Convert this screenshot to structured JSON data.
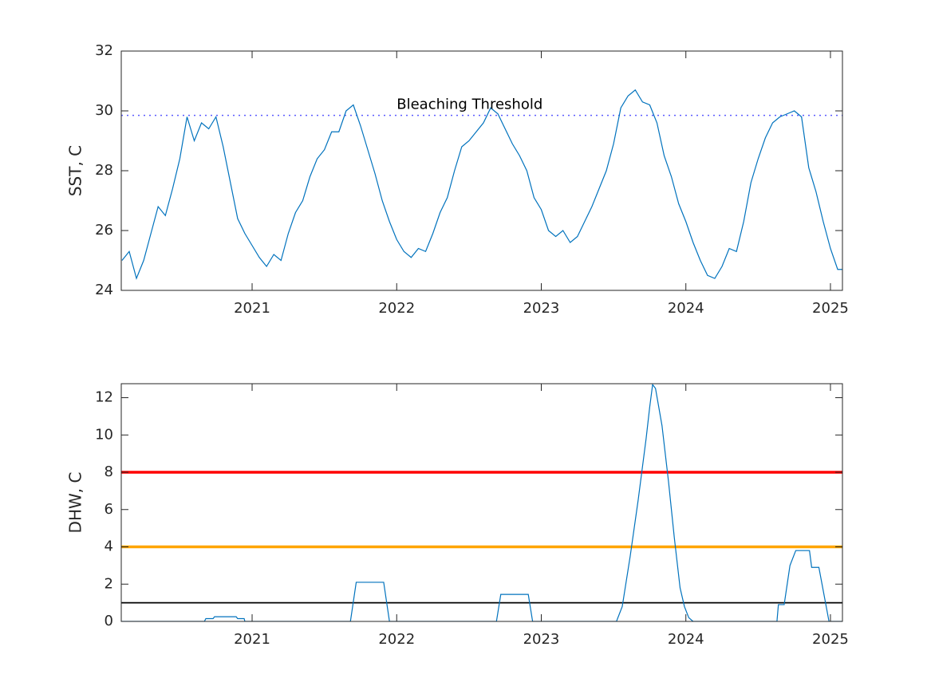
{
  "chart_data": [
    {
      "type": "line",
      "ylabel": "SST, C",
      "xlim": [
        2020.095,
        2025.083
      ],
      "xticks": [
        2021,
        2022,
        2023,
        2024,
        2025
      ],
      "ylim": [
        24,
        32
      ],
      "yticks": [
        24,
        26,
        28,
        30,
        32
      ],
      "x": [
        2020.1,
        2020.15,
        2020.2,
        2020.25,
        2020.3,
        2020.35,
        2020.4,
        2020.45,
        2020.5,
        2020.55,
        2020.6,
        2020.65,
        2020.7,
        2020.75,
        2020.8,
        2020.85,
        2020.9,
        2020.95,
        2021.0,
        2021.05,
        2021.1,
        2021.15,
        2021.2,
        2021.25,
        2021.3,
        2021.35,
        2021.4,
        2021.45,
        2021.5,
        2021.55,
        2021.6,
        2021.65,
        2021.7,
        2021.75,
        2021.8,
        2021.85,
        2021.9,
        2021.95,
        2022.0,
        2022.05,
        2022.1,
        2022.15,
        2022.2,
        2022.25,
        2022.3,
        2022.35,
        2022.4,
        2022.45,
        2022.5,
        2022.55,
        2022.6,
        2022.65,
        2022.7,
        2022.75,
        2022.8,
        2022.85,
        2022.9,
        2022.95,
        2023.0,
        2023.05,
        2023.1,
        2023.15,
        2023.2,
        2023.25,
        2023.3,
        2023.35,
        2023.4,
        2023.45,
        2023.5,
        2023.55,
        2023.6,
        2023.65,
        2023.7,
        2023.75,
        2023.8,
        2023.85,
        2023.9,
        2023.95,
        2024.0,
        2024.05,
        2024.1,
        2024.15,
        2024.2,
        2024.25,
        2024.3,
        2024.35,
        2024.4,
        2024.45,
        2024.5,
        2024.55,
        2024.6,
        2024.65,
        2024.7,
        2024.75,
        2024.8,
        2024.85,
        2024.9,
        2024.95,
        2025.0,
        2025.05,
        2025.08
      ],
      "series": [
        {
          "color": "#0072bd",
          "values": [
            25.0,
            25.3,
            24.4,
            25.0,
            25.9,
            26.8,
            26.5,
            27.4,
            28.4,
            29.8,
            29.0,
            29.6,
            29.4,
            29.8,
            28.8,
            27.6,
            26.4,
            25.9,
            25.5,
            25.1,
            24.8,
            25.2,
            25.0,
            25.9,
            26.6,
            27.0,
            27.8,
            28.4,
            28.7,
            29.3,
            29.3,
            30.0,
            30.2,
            29.5,
            28.7,
            27.9,
            27.0,
            26.3,
            25.7,
            25.3,
            25.1,
            25.4,
            25.3,
            25.9,
            26.6,
            27.1,
            28.0,
            28.8,
            29.0,
            29.3,
            29.6,
            30.1,
            29.9,
            29.4,
            28.9,
            28.5,
            28.0,
            27.1,
            26.7,
            26.0,
            25.8,
            26.0,
            25.6,
            25.8,
            26.3,
            26.8,
            27.4,
            28.0,
            28.9,
            30.1,
            30.5,
            30.7,
            30.3,
            30.2,
            29.6,
            28.5,
            27.8,
            26.9,
            26.3,
            25.6,
            25.0,
            24.5,
            24.4,
            24.8,
            25.4,
            25.3,
            26.3,
            27.6,
            28.4,
            29.1,
            29.6,
            29.8,
            29.9,
            30.0,
            29.8,
            28.1,
            27.3,
            26.3,
            25.4,
            24.7,
            24.7
          ]
        }
      ],
      "hlines": [
        {
          "value": 29.85,
          "color": "#5b5bff",
          "style": "dotted",
          "linewidth": 1.5
        }
      ],
      "annotations": [
        {
          "text": "Bleaching Threshold",
          "x": 2022.0,
          "y": 30.2
        }
      ]
    },
    {
      "type": "line",
      "ylabel": "DHW, C",
      "xlim": [
        2020.095,
        2025.083
      ],
      "xticks": [
        2021,
        2022,
        2023,
        2024,
        2025
      ],
      "ylim": [
        0,
        12.75
      ],
      "yticks": [
        0,
        2,
        4,
        6,
        8,
        10,
        12
      ],
      "x": [
        2020.095,
        2020.67,
        2020.68,
        2020.73,
        2020.74,
        2020.89,
        2020.9,
        2020.945,
        2020.95,
        2021.68,
        2021.72,
        2021.91,
        2021.95,
        2022.69,
        2022.72,
        2022.91,
        2022.94,
        2023.52,
        2023.56,
        2023.615,
        2023.67,
        2023.725,
        2023.75,
        2023.77,
        2023.79,
        2023.835,
        2023.88,
        2023.92,
        2023.96,
        2023.99,
        2024.02,
        2024.05,
        2024.63,
        2024.64,
        2024.68,
        2024.72,
        2024.76,
        2024.855,
        2024.87,
        2024.92,
        2024.99,
        2025.08
      ],
      "series": [
        {
          "color": "#0072bd",
          "values": [
            0,
            0,
            0.15,
            0.15,
            0.25,
            0.25,
            0.15,
            0.15,
            0,
            0,
            2.1,
            2.1,
            0,
            0,
            1.45,
            1.45,
            0,
            0,
            0.8,
            3.5,
            6.5,
            9.8,
            11.5,
            12.7,
            12.5,
            10.5,
            7.5,
            4.5,
            1.8,
            0.8,
            0.2,
            0,
            0,
            0.9,
            0.9,
            3.0,
            3.8,
            3.8,
            2.9,
            2.9,
            0,
            0
          ]
        }
      ],
      "hlines": [
        {
          "value": 8,
          "color": "#ff0000",
          "style": "solid",
          "linewidth": 3.5
        },
        {
          "value": 4,
          "color": "#ffa500",
          "style": "solid",
          "linewidth": 3.5
        },
        {
          "value": 1,
          "color": "#000000",
          "style": "solid",
          "linewidth": 1.8
        }
      ]
    }
  ]
}
